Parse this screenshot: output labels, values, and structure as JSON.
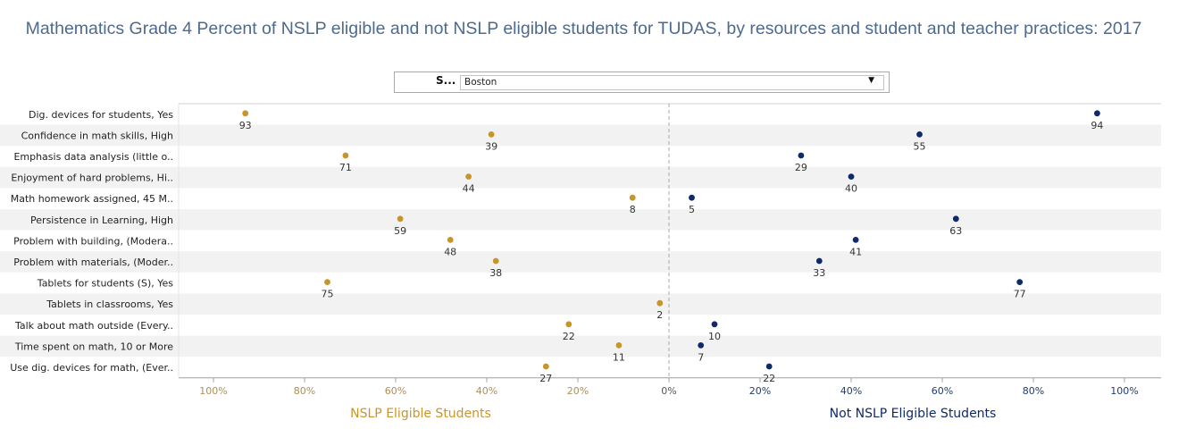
{
  "title": "Mathematics Grade 4 Percent of NSLP eligible and not NSLP eligible students for TUDAS, by resources and student and teacher practices: 2017",
  "filter": {
    "label": "S...",
    "value": "Boston"
  },
  "colors": {
    "eligible": "#c8952b",
    "not_eligible": "#0f2a6b",
    "band": "#f2f2f2",
    "axis_text_left": "#b08d57",
    "axis_text_right": "#1f3c73"
  },
  "chart_data": {
    "type": "scatter",
    "title": "Mathematics Grade 4 Percent of NSLP eligible and not NSLP eligible students for TUDAS, by resources and student and teacher practices: 2017",
    "categories": [
      "Dig. devices for students, Yes",
      "Confidence in math skills, High",
      "Emphasis data analysis (little o..",
      "Enjoyment of hard problems, Hi..",
      "Math homework assigned, 45 M..",
      "Persistence in Learning, High",
      "Problem with building, (Modera..",
      "Problem with materials, (Moder..",
      "Tablets for students (S), Yes",
      "Tablets in classrooms, Yes",
      "Talk about math outside (Every..",
      "Time spent on math, 10 or More",
      "Use dig. devices for math,  (Ever.."
    ],
    "series": [
      {
        "name": "NSLP Eligible Students",
        "values": [
          93,
          39,
          71,
          44,
          8,
          59,
          48,
          38,
          75,
          2,
          22,
          11,
          27
        ]
      },
      {
        "name": "Not NSLP Eligible Students",
        "values": [
          94,
          55,
          29,
          40,
          5,
          63,
          41,
          33,
          77,
          null,
          10,
          7,
          22
        ]
      }
    ],
    "xlim": [
      -100,
      100
    ],
    "x_ticks": [
      "100%",
      "80%",
      "60%",
      "40%",
      "20%",
      "0%",
      "20%",
      "40%",
      "60%",
      "80%",
      "100%"
    ],
    "xlabel_left": "NSLP Eligible Students",
    "xlabel_right": "Not NSLP Eligible Students"
  }
}
